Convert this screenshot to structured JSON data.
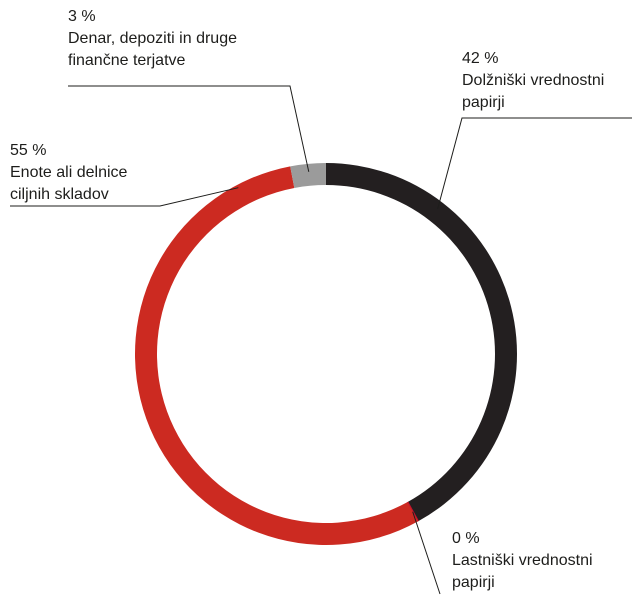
{
  "chart_data": {
    "type": "pie",
    "variant": "donut",
    "categories": [
      "Dolžniški vrednostni papirji",
      "Lastniški vrednostni papirji",
      "Enote ali delnice ciljnih skladov",
      "Denar, depoziti in druge finančne terjatve"
    ],
    "values": [
      42,
      0,
      55,
      3
    ],
    "colors": [
      "#231f20",
      "#c8102e",
      "#cc2a21",
      "#9b9b9b"
    ],
    "labels": [
      {
        "key": "debt",
        "value": "42 %",
        "line1": "Dolžniški vrednostni",
        "line2": "papirji"
      },
      {
        "key": "equity",
        "value": "0 %",
        "line1": "Lastniški vrednostni",
        "line2": "papirji"
      },
      {
        "key": "funds",
        "value": "55 %",
        "line1": "Enote ali delnice",
        "line2": "ciljnih skladov"
      },
      {
        "key": "cash",
        "value": "3 %",
        "line1": "Denar, depoziti in druge",
        "line2": "finančne terjatve"
      }
    ],
    "legend": "none"
  }
}
